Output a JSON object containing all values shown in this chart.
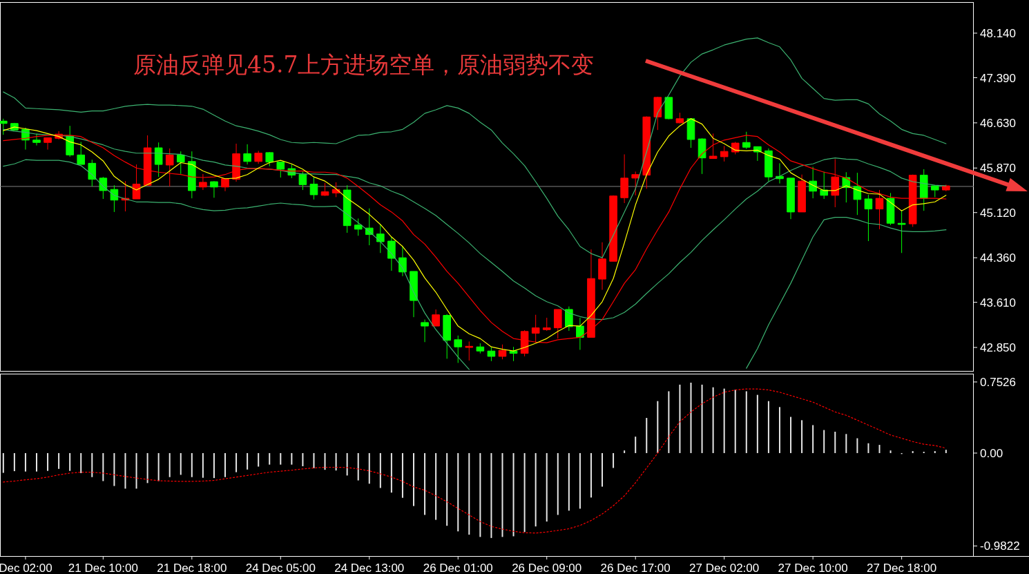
{
  "chart_data": [
    {
      "type": "candlestick",
      "categories": [
        null,
        null,
        null,
        null,
        null,
        null,
        null,
        null,
        null,
        null,
        null,
        null,
        null,
        null,
        null,
        null,
        null,
        null,
        null,
        null,
        null,
        null,
        null,
        null,
        null,
        null,
        null,
        null,
        null,
        null,
        null,
        null,
        null,
        null,
        null,
        null,
        null,
        null,
        null,
        null,
        null,
        null,
        null,
        null,
        null,
        null,
        null,
        null,
        null,
        null,
        null,
        null,
        null,
        null,
        null,
        null,
        null,
        null,
        null,
        null,
        null,
        null,
        null,
        null,
        null,
        null,
        null,
        null,
        null,
        null,
        null,
        null,
        null,
        null,
        null,
        null,
        null,
        null,
        null,
        null,
        null,
        null,
        null,
        null,
        null,
        null
      ],
      "ohlc": [
        [
          46.66,
          46.7,
          46.43,
          46.62
        ],
        [
          46.62,
          46.63,
          46.5,
          46.51
        ],
        [
          46.52,
          46.55,
          46.18,
          46.34
        ],
        [
          46.34,
          46.45,
          46.25,
          46.3
        ],
        [
          46.3,
          46.38,
          46.18,
          46.38
        ],
        [
          46.37,
          46.49,
          46.35,
          46.44
        ],
        [
          46.41,
          46.58,
          46.06,
          46.09
        ],
        [
          46.09,
          46.31,
          45.93,
          45.93
        ],
        [
          45.95,
          46.01,
          45.56,
          45.68
        ],
        [
          45.7,
          45.72,
          45.35,
          45.49
        ],
        [
          45.51,
          45.58,
          45.13,
          45.33
        ],
        [
          45.33,
          45.65,
          45.14,
          45.36
        ],
        [
          45.35,
          45.93,
          45.35,
          45.6
        ],
        [
          45.58,
          46.42,
          45.58,
          46.21
        ],
        [
          46.21,
          46.3,
          45.72,
          45.93
        ],
        [
          45.92,
          46.2,
          45.56,
          46.09
        ],
        [
          46.09,
          46.15,
          45.77,
          45.97
        ],
        [
          45.98,
          46.15,
          45.36,
          45.49
        ],
        [
          45.55,
          45.77,
          45.5,
          45.63
        ],
        [
          45.64,
          45.65,
          45.37,
          45.55
        ],
        [
          45.55,
          45.7,
          45.48,
          45.69
        ],
        [
          45.68,
          46.28,
          45.64,
          46.11
        ],
        [
          46.11,
          46.27,
          45.93,
          45.98
        ],
        [
          45.98,
          46.16,
          45.94,
          46.12
        ],
        [
          46.13,
          46.14,
          45.9,
          45.97
        ],
        [
          45.97,
          45.98,
          45.71,
          45.85
        ],
        [
          45.86,
          45.93,
          45.7,
          45.75
        ],
        [
          45.76,
          45.81,
          45.5,
          45.59
        ],
        [
          45.6,
          45.72,
          45.34,
          45.42
        ],
        [
          45.41,
          45.62,
          45.4,
          45.47
        ],
        [
          45.45,
          45.63,
          45.38,
          45.51
        ],
        [
          45.5,
          45.58,
          44.78,
          44.9
        ],
        [
          44.91,
          45.02,
          44.73,
          44.84
        ],
        [
          44.86,
          45.19,
          44.57,
          44.75
        ],
        [
          44.76,
          44.92,
          44.44,
          44.63
        ],
        [
          44.64,
          44.71,
          44.14,
          44.35
        ],
        [
          44.36,
          44.55,
          44.05,
          44.12
        ],
        [
          44.13,
          44.13,
          43.36,
          43.64
        ],
        [
          43.27,
          43.32,
          42.94,
          43.21
        ],
        [
          43.21,
          43.49,
          43.21,
          43.4
        ],
        [
          43.39,
          43.41,
          42.66,
          42.97
        ],
        [
          42.98,
          43.05,
          42.59,
          42.86
        ],
        [
          42.85,
          42.95,
          42.63,
          42.87
        ],
        [
          42.86,
          42.92,
          42.75,
          42.79
        ],
        [
          42.79,
          42.85,
          42.62,
          42.7
        ],
        [
          42.7,
          42.9,
          42.65,
          42.8
        ],
        [
          42.79,
          42.86,
          42.62,
          42.75
        ],
        [
          42.75,
          43.14,
          42.7,
          43.12
        ],
        [
          43.09,
          43.4,
          42.93,
          43.18
        ],
        [
          43.15,
          43.35,
          43.13,
          43.18
        ],
        [
          43.18,
          43.49,
          43.0,
          43.49
        ],
        [
          43.49,
          43.54,
          43.13,
          43.2
        ],
        [
          43.21,
          43.35,
          42.81,
          43.02
        ],
        [
          43.02,
          44.5,
          43.02,
          44.01
        ],
        [
          44.0,
          44.62,
          43.82,
          44.34
        ],
        [
          44.3,
          45.41,
          44.3,
          45.4
        ],
        [
          45.37,
          46.1,
          45.28,
          45.7
        ],
        [
          45.7,
          45.81,
          45.41,
          45.76
        ],
        [
          45.75,
          46.74,
          45.52,
          46.73
        ],
        [
          46.73,
          47.07,
          46.51,
          47.06
        ],
        [
          47.06,
          47.07,
          46.69,
          46.7
        ],
        [
          46.63,
          46.8,
          46.62,
          46.7
        ],
        [
          46.7,
          46.71,
          46.21,
          46.35
        ],
        [
          46.36,
          46.37,
          45.77,
          46.04
        ],
        [
          46.03,
          46.45,
          46.03,
          46.07
        ],
        [
          46.06,
          46.24,
          45.98,
          46.15
        ],
        [
          46.14,
          46.31,
          46.1,
          46.29
        ],
        [
          46.3,
          46.48,
          46.19,
          46.22
        ],
        [
          46.23,
          46.23,
          45.99,
          46.14
        ],
        [
          46.16,
          46.2,
          45.65,
          45.72
        ],
        [
          45.73,
          45.95,
          45.61,
          45.69
        ],
        [
          45.7,
          45.7,
          45.01,
          45.13
        ],
        [
          45.13,
          45.76,
          45.13,
          45.65
        ],
        [
          45.65,
          45.89,
          45.36,
          45.48
        ],
        [
          45.5,
          45.81,
          45.35,
          45.41
        ],
        [
          45.41,
          46.02,
          45.21,
          45.72
        ],
        [
          45.71,
          45.8,
          45.29,
          45.54
        ],
        [
          45.56,
          45.79,
          45.08,
          45.34
        ],
        [
          45.35,
          45.42,
          44.64,
          45.18
        ],
        [
          45.18,
          45.5,
          44.84,
          45.36
        ],
        [
          45.36,
          45.45,
          44.91,
          44.94
        ],
        [
          44.94,
          45.16,
          44.44,
          44.92
        ],
        [
          44.93,
          45.76,
          44.88,
          45.75
        ],
        [
          45.75,
          45.85,
          45.15,
          45.36
        ],
        [
          45.57,
          45.58,
          45.38,
          45.5
        ],
        [
          45.5,
          45.59,
          45.48,
          45.57
        ]
      ],
      "colors": [
        "#00ff00",
        "#00ff00",
        "#00ff00",
        "#00ff00",
        "#ff0000",
        "#ff0000",
        "#00ff00",
        "#00ff00",
        "#00ff00",
        "#00ff00",
        "#00ff00",
        "#ff0000",
        "#ff0000",
        "#ff0000",
        "#00ff00",
        "#ff0000",
        "#00ff00",
        "#00ff00",
        "#ff0000",
        "#00ff00",
        "#ff0000",
        "#ff0000",
        "#00ff00",
        "#ff0000",
        "#00ff00",
        "#00ff00",
        "#00ff00",
        "#00ff00",
        "#00ff00",
        "#ff0000",
        "#ff0000",
        "#00ff00",
        "#00ff00",
        "#00ff00",
        "#00ff00",
        "#00ff00",
        "#00ff00",
        "#00ff00",
        "#00ff00",
        "#ff0000",
        "#00ff00",
        "#00ff00",
        "#ff0000",
        "#00ff00",
        "#00ff00",
        "#ff0000",
        "#00ff00",
        "#ff0000",
        "#ff0000",
        "#ff0000",
        "#ff0000",
        "#00ff00",
        "#00ff00",
        "#ff0000",
        "#ff0000",
        "#ff0000",
        "#ff0000",
        "#ff0000",
        "#ff0000",
        "#ff0000",
        "#00ff00",
        "#ff0000",
        "#00ff00",
        "#00ff00",
        "#ff0000",
        "#ff0000",
        "#ff0000",
        "#00ff00",
        "#00ff00",
        "#00ff00",
        "#00ff00",
        "#00ff00",
        "#ff0000",
        "#00ff00",
        "#00ff00",
        "#ff0000",
        "#00ff00",
        "#00ff00",
        "#00ff00",
        "#ff0000",
        "#00ff00",
        "#00ff00",
        "#ff0000",
        "#00ff00",
        "#00ff00",
        "#ff0000"
      ],
      "series": [
        {
          "type": "line",
          "color": "#3cb371",
          "values": [
            47.15,
            47.05,
            46.88,
            46.87,
            46.86,
            46.85,
            46.83,
            46.81,
            46.83,
            46.83,
            46.87,
            46.91,
            46.93,
            46.94,
            46.93,
            46.93,
            46.92,
            46.91,
            46.86,
            46.76,
            46.66,
            46.58,
            46.54,
            46.49,
            46.43,
            46.35,
            46.3,
            46.29,
            46.3,
            46.29,
            46.28,
            46.35,
            46.42,
            46.43,
            46.47,
            46.48,
            46.52,
            46.64,
            46.79,
            46.85,
            46.92,
            46.88,
            46.79,
            46.64,
            46.51,
            46.29,
            46.11,
            45.91,
            45.64,
            45.36,
            45.06,
            44.83,
            44.55,
            44.43,
            44.36,
            44.74,
            45.13,
            45.52,
            46.14,
            46.8,
            47.1,
            47.42,
            47.65,
            47.79,
            47.86,
            47.94,
            47.99,
            48.04,
            48.06,
            47.98,
            47.91,
            47.69,
            47.38,
            47.21,
            47.04,
            47.01,
            47.02,
            47.02,
            46.95,
            46.78,
            46.66,
            46.52,
            46.45,
            46.42,
            46.35,
            46.28
          ]
        },
        {
          "type": "line",
          "color": "#3cb371",
          "values": [
            46.52,
            46.49,
            46.47,
            46.44,
            46.43,
            46.42,
            46.4,
            46.36,
            46.31,
            46.26,
            46.19,
            46.15,
            46.12,
            46.12,
            46.12,
            46.11,
            46.1,
            46.05,
            46.0,
            45.97,
            45.92,
            45.9,
            45.87,
            45.86,
            45.85,
            45.83,
            45.79,
            45.77,
            45.77,
            45.76,
            45.76,
            45.73,
            45.7,
            45.62,
            45.57,
            45.48,
            45.41,
            45.3,
            45.19,
            45.07,
            44.92,
            44.77,
            44.61,
            44.43,
            44.28,
            44.13,
            43.97,
            43.85,
            43.72,
            43.62,
            43.55,
            43.43,
            43.37,
            43.33,
            43.32,
            43.35,
            43.44,
            43.58,
            43.76,
            43.93,
            44.09,
            44.28,
            44.45,
            44.65,
            44.83,
            45.0,
            45.18,
            45.35,
            45.48,
            45.64,
            45.73,
            45.83,
            45.91,
            45.94,
            46.01,
            46.04,
            46.02,
            46.01,
            45.94,
            45.88,
            45.81,
            45.7,
            45.64,
            45.61,
            45.58,
            45.57
          ]
        },
        {
          "type": "line",
          "color": "#3cb371",
          "values": [
            45.9,
            45.94,
            46.01,
            46.0,
            46.0,
            46.0,
            45.97,
            45.91,
            45.76,
            45.56,
            45.41,
            45.35,
            45.3,
            45.3,
            45.29,
            45.29,
            45.27,
            45.21,
            45.17,
            45.15,
            45.16,
            45.19,
            45.2,
            45.23,
            45.26,
            45.28,
            45.26,
            45.25,
            45.22,
            45.22,
            45.23,
            45.09,
            44.95,
            44.8,
            44.63,
            44.43,
            44.19,
            43.78,
            43.43,
            43.15,
            42.92,
            42.69,
            42.48,
            null,
            null,
            null,
            null,
            null,
            null,
            null,
            null,
            null,
            null,
            null,
            null,
            null,
            null,
            null,
            null,
            null,
            null,
            null,
            null,
            null,
            null,
            null,
            null,
            42.5,
            42.83,
            43.23,
            43.58,
            43.93,
            44.32,
            44.71,
            45.0,
            45.04,
            45.04,
            45.0,
            44.94,
            44.92,
            44.86,
            44.81,
            44.8,
            44.8,
            44.81,
            44.83
          ]
        },
        {
          "type": "line",
          "color": "#ff0000",
          "values": [
            46.33,
            46.35,
            46.37,
            46.4,
            46.42,
            46.42,
            46.42,
            46.4,
            46.3,
            46.21,
            46.08,
            45.97,
            45.87,
            45.83,
            45.8,
            45.78,
            45.76,
            45.72,
            45.71,
            45.72,
            45.76,
            45.83,
            45.86,
            45.86,
            45.85,
            45.83,
            45.82,
            45.82,
            45.8,
            45.8,
            45.78,
            45.7,
            45.56,
            45.41,
            45.25,
            45.13,
            44.98,
            44.75,
            44.59,
            44.37,
            44.13,
            43.93,
            43.7,
            43.47,
            43.27,
            43.12,
            43.0,
            42.97,
            42.94,
            42.93,
            42.98,
            43.0,
            43.02,
            43.15,
            43.32,
            43.62,
            43.93,
            44.16,
            44.51,
            44.83,
            45.13,
            45.52,
            45.87,
            46.11,
            46.26,
            46.34,
            46.38,
            46.42,
            46.4,
            46.26,
            46.14,
            45.99,
            45.93,
            45.86,
            45.8,
            45.76,
            45.7,
            45.59,
            45.49,
            45.44,
            45.38,
            45.36,
            45.36,
            45.36,
            45.36,
            45.35
          ]
        },
        {
          "type": "line",
          "color": "#ffff00",
          "values": [
            46.5,
            46.56,
            46.53,
            46.5,
            46.45,
            46.4,
            46.31,
            46.26,
            46.14,
            45.99,
            45.73,
            45.59,
            45.5,
            45.59,
            45.68,
            45.82,
            45.96,
            45.93,
            45.82,
            45.75,
            45.69,
            45.7,
            45.76,
            45.87,
            45.96,
            46.0,
            45.94,
            45.85,
            45.72,
            45.65,
            45.52,
            45.36,
            45.23,
            45.09,
            44.92,
            44.71,
            44.55,
            44.32,
            44.02,
            43.78,
            43.49,
            43.21,
            43.08,
            43.0,
            42.86,
            42.82,
            42.79,
            42.85,
            42.92,
            43.0,
            43.12,
            43.22,
            43.21,
            43.39,
            43.62,
            44.01,
            44.61,
            45.25,
            45.76,
            46.14,
            46.41,
            46.58,
            46.7,
            46.61,
            46.37,
            46.28,
            46.17,
            46.16,
            46.17,
            46.08,
            46.02,
            45.79,
            45.68,
            45.58,
            45.49,
            45.49,
            45.57,
            45.5,
            45.44,
            45.43,
            45.29,
            45.15,
            45.25,
            45.27,
            45.3,
            45.41
          ]
        }
      ],
      "ylim": [
        42.455,
        48.663
      ],
      "yticks": [
        {
          "value": 48.14,
          "label": "48.140"
        },
        {
          "value": 47.39,
          "label": "47.390"
        },
        {
          "value": 46.63,
          "label": "46.630"
        },
        {
          "value": 45.87,
          "label": "45.870"
        },
        {
          "value": 45.12,
          "label": "45.120"
        },
        {
          "value": 44.36,
          "label": "44.360"
        },
        {
          "value": 43.61,
          "label": "43.610"
        },
        {
          "value": 42.85,
          "label": "42.850"
        }
      ],
      "ref_lines": [
        {
          "axis": "y",
          "value": 45.56,
          "color": "#808080"
        }
      ],
      "annotations": [
        "原油反弹见45.7上方进场空单，原油弱势不变"
      ],
      "tick_labels": "y"
    },
    {
      "type": "bar",
      "categories": [
        null,
        null,
        "Dec 02:00",
        null,
        null,
        null,
        null,
        null,
        null,
        "21 Dec 10:00",
        null,
        null,
        null,
        null,
        null,
        null,
        null,
        "21 Dec 18:00",
        null,
        null,
        null,
        null,
        null,
        null,
        null,
        "24 Dec 05:00",
        null,
        null,
        null,
        null,
        null,
        null,
        null,
        "24 Dec 13:00",
        null,
        null,
        null,
        null,
        null,
        null,
        null,
        "26 Dec 01:00",
        null,
        null,
        null,
        null,
        null,
        null,
        null,
        "26 Dec 09:00",
        null,
        null,
        null,
        null,
        null,
        null,
        null,
        "26 Dec 17:00",
        null,
        null,
        null,
        null,
        null,
        null,
        null,
        "27 Dec 02:00",
        null,
        null,
        null,
        null,
        null,
        null,
        null,
        "27 Dec 10:00",
        null,
        null,
        null,
        null,
        null,
        null,
        null,
        "27 Dec 18:00",
        null,
        null,
        null,
        null
      ],
      "series": [
        {
          "type": "bar",
          "color": "#e6e6e6",
          "values": [
            -0.209,
            -0.191,
            -0.195,
            -0.195,
            -0.188,
            -0.167,
            -0.188,
            -0.212,
            -0.254,
            -0.296,
            -0.348,
            -0.376,
            -0.376,
            -0.317,
            -0.296,
            -0.254,
            -0.23,
            -0.254,
            -0.261,
            -0.264,
            -0.254,
            -0.202,
            -0.174,
            -0.143,
            -0.122,
            -0.122,
            -0.122,
            -0.139,
            -0.16,
            -0.177,
            -0.184,
            -0.237,
            -0.289,
            -0.324,
            -0.369,
            -0.418,
            -0.473,
            -0.56,
            -0.654,
            -0.706,
            -0.769,
            -0.828,
            -0.863,
            -0.887,
            -0.898,
            -0.887,
            -0.88,
            -0.835,
            -0.776,
            -0.724,
            -0.654,
            -0.609,
            -0.588,
            -0.47,
            -0.355,
            -0.157,
            0.028,
            0.174,
            0.372,
            0.55,
            0.654,
            0.724,
            0.745,
            0.724,
            0.696,
            0.682,
            0.672,
            0.654,
            0.616,
            0.55,
            0.487,
            0.383,
            0.348,
            0.296,
            0.244,
            0.226,
            0.202,
            0.157,
            0.104,
            0.087,
            0.028,
            -0.01,
            0.021,
            0.014,
            0.021,
            0.035
          ]
        },
        {
          "type": "line",
          "color": "#ff0000",
          "line_style": "dotted",
          "values": [
            -0.306,
            -0.296,
            -0.282,
            -0.271,
            -0.254,
            -0.23,
            -0.212,
            -0.202,
            -0.202,
            -0.212,
            -0.23,
            -0.247,
            -0.264,
            -0.278,
            -0.292,
            -0.296,
            -0.299,
            -0.299,
            -0.296,
            -0.289,
            -0.271,
            -0.254,
            -0.237,
            -0.219,
            -0.202,
            -0.191,
            -0.181,
            -0.167,
            -0.157,
            -0.15,
            -0.15,
            -0.153,
            -0.167,
            -0.188,
            -0.219,
            -0.254,
            -0.299,
            -0.358,
            -0.393,
            -0.452,
            -0.515,
            -0.585,
            -0.654,
            -0.724,
            -0.776,
            -0.804,
            -0.828,
            -0.842,
            -0.846,
            -0.835,
            -0.818,
            -0.8,
            -0.765,
            -0.713,
            -0.644,
            -0.557,
            -0.452,
            -0.313,
            -0.157,
            0.0,
            0.174,
            0.331,
            0.435,
            0.522,
            0.592,
            0.644,
            0.668,
            0.679,
            0.679,
            0.668,
            0.644,
            0.609,
            0.574,
            0.539,
            0.487,
            0.435,
            0.4,
            0.348,
            0.296,
            0.244,
            0.191,
            0.157,
            0.122,
            0.094,
            0.08,
            0.052
          ]
        }
      ],
      "ylim": [
        -1.089,
        0.84
      ],
      "yticks": [
        {
          "value": 0.7526,
          "label": "0.7526"
        },
        {
          "value": 0,
          "label": "0.00"
        },
        {
          "value": -0.9822,
          "label": "-0.9822"
        }
      ]
    }
  ]
}
